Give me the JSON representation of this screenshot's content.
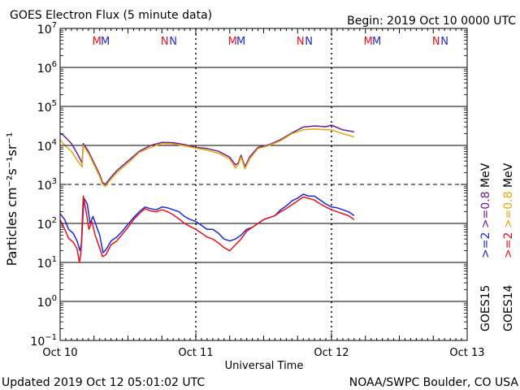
{
  "chart_data": {
    "type": "line",
    "title": "GOES Electron Flux (5 minute data)",
    "begin_label": "Begin: 2019 Oct 10 0000 UTC",
    "xlabel": "Universal Time",
    "ylabel": "Particles cm⁻²s⁻¹sr⁻¹",
    "yscale": "log",
    "ylim_exp": [
      -1,
      7
    ],
    "y_ticks": [
      {
        "base": "10",
        "exp": "7"
      },
      {
        "base": "10",
        "exp": "6"
      },
      {
        "base": "10",
        "exp": "5"
      },
      {
        "base": "10",
        "exp": "4"
      },
      {
        "base": "10",
        "exp": "3"
      },
      {
        "base": "10",
        "exp": "2"
      },
      {
        "base": "10",
        "exp": "1"
      },
      {
        "base": "10",
        "exp": "0"
      },
      {
        "base": "10",
        "exp": "−1"
      }
    ],
    "xlim_hours": [
      0,
      72
    ],
    "x_ticks": [
      {
        "label": "Oct 10",
        "hour": 0
      },
      {
        "label": "Oct 11",
        "hour": 24
      },
      {
        "label": "Oct 12",
        "hour": 48
      },
      {
        "label": "Oct 13",
        "hour": 72
      }
    ],
    "threshold_exp": 3,
    "local_time_markers": [
      {
        "label": "M",
        "hour": 6.5,
        "color": "#e8101a"
      },
      {
        "label": "M",
        "hour": 8.0,
        "color": "#1a2adb"
      },
      {
        "label": "N",
        "hour": 18.5,
        "color": "#e8101a"
      },
      {
        "label": "N",
        "hour": 20.0,
        "color": "#1a2adb"
      },
      {
        "label": "M",
        "hour": 30.5,
        "color": "#e8101a"
      },
      {
        "label": "M",
        "hour": 32.0,
        "color": "#1a2adb"
      },
      {
        "label": "N",
        "hour": 42.5,
        "color": "#e8101a"
      },
      {
        "label": "N",
        "hour": 44.0,
        "color": "#1a2adb"
      },
      {
        "label": "M",
        "hour": 54.5,
        "color": "#e8101a"
      },
      {
        "label": "M",
        "hour": 56.0,
        "color": "#1a2adb"
      },
      {
        "label": "N",
        "hour": 66.5,
        "color": "#e8101a"
      },
      {
        "label": "N",
        "hour": 68.0,
        "color": "#1a2adb"
      }
    ],
    "legend": {
      "goes15": "GOES15",
      "goes14": "GOES14",
      "items": [
        {
          "text": ">=2",
          "color": "#1a2adb"
        },
        {
          "text": ">=0.8",
          "color": "#6a1f9a"
        },
        {
          "text": "MeV",
          "color": "#000000"
        },
        {
          "text": ">=2",
          "color": "#e8101a"
        },
        {
          "text": ">=0.8",
          "color": "#e8a50c"
        },
        {
          "text": "MeV",
          "color": "#000000"
        }
      ]
    },
    "series": [
      {
        "name": "GOES15 >=0.8 MeV",
        "color": "#6a1f9a",
        "points": [
          [
            0,
            4.3
          ],
          [
            0.5,
            4.27
          ],
          [
            1,
            4.2
          ],
          [
            2,
            4.05
          ],
          [
            3,
            3.8
          ],
          [
            3.9,
            3.55
          ],
          [
            4.1,
            4.05
          ],
          [
            5,
            3.85
          ],
          [
            6,
            3.55
          ],
          [
            7,
            3.25
          ],
          [
            7.5,
            3.05
          ],
          [
            8.0,
            3.0
          ],
          [
            8.8,
            3.15
          ],
          [
            10,
            3.35
          ],
          [
            12,
            3.6
          ],
          [
            14,
            3.85
          ],
          [
            16,
            4.0
          ],
          [
            18,
            4.08
          ],
          [
            20,
            4.07
          ],
          [
            22,
            4.02
          ],
          [
            24,
            3.95
          ],
          [
            26,
            3.92
          ],
          [
            28,
            3.85
          ],
          [
            30,
            3.7
          ],
          [
            31,
            3.5
          ],
          [
            31.5,
            3.55
          ],
          [
            32,
            3.75
          ],
          [
            32.7,
            3.45
          ],
          [
            33.5,
            3.7
          ],
          [
            35,
            3.95
          ],
          [
            37,
            4.02
          ],
          [
            39,
            4.15
          ],
          [
            41,
            4.32
          ],
          [
            43,
            4.47
          ],
          [
            45,
            4.5
          ],
          [
            47,
            4.48
          ],
          [
            48,
            4.52
          ],
          [
            50,
            4.4
          ],
          [
            52,
            4.35
          ]
        ]
      },
      {
        "name": "GOES14 >=0.8 MeV",
        "color": "#e8a50c",
        "points": [
          [
            0,
            4.15
          ],
          [
            0.5,
            4.05
          ],
          [
            1,
            3.98
          ],
          [
            2,
            3.85
          ],
          [
            3,
            3.62
          ],
          [
            3.9,
            3.45
          ],
          [
            4.1,
            4.0
          ],
          [
            5,
            3.8
          ],
          [
            6,
            3.5
          ],
          [
            7,
            3.2
          ],
          [
            7.5,
            3.0
          ],
          [
            8.0,
            2.95
          ],
          [
            8.8,
            3.1
          ],
          [
            10,
            3.3
          ],
          [
            12,
            3.55
          ],
          [
            14,
            3.82
          ],
          [
            16,
            3.95
          ],
          [
            18,
            4.05
          ],
          [
            20,
            4.04
          ],
          [
            22,
            3.99
          ],
          [
            24,
            3.93
          ],
          [
            26,
            3.88
          ],
          [
            28,
            3.8
          ],
          [
            30,
            3.65
          ],
          [
            31,
            3.42
          ],
          [
            31.5,
            3.5
          ],
          [
            32,
            3.7
          ],
          [
            32.7,
            3.4
          ],
          [
            33.5,
            3.65
          ],
          [
            35,
            3.92
          ],
          [
            37,
            4.0
          ],
          [
            39,
            4.12
          ],
          [
            41,
            4.3
          ],
          [
            43,
            4.4
          ],
          [
            45,
            4.42
          ],
          [
            47,
            4.4
          ],
          [
            48,
            4.4
          ],
          [
            50,
            4.3
          ],
          [
            52,
            4.22
          ]
        ]
      },
      {
        "name": "GOES15 >=2 MeV",
        "color": "#1a2adb",
        "points": [
          [
            0,
            2.25
          ],
          [
            0.8,
            2.1
          ],
          [
            1.5,
            1.85
          ],
          [
            2.3,
            1.75
          ],
          [
            3,
            1.55
          ],
          [
            3.5,
            1.3
          ],
          [
            3.8,
            1.5
          ],
          [
            4.2,
            2.65
          ],
          [
            4.8,
            2.5
          ],
          [
            5.3,
            2.0
          ],
          [
            5.8,
            2.18
          ],
          [
            6.5,
            1.9
          ],
          [
            7,
            1.7
          ],
          [
            7.6,
            1.25
          ],
          [
            8.2,
            1.35
          ],
          [
            9,
            1.55
          ],
          [
            10,
            1.65
          ],
          [
            11,
            1.8
          ],
          [
            12,
            1.98
          ],
          [
            13,
            2.15
          ],
          [
            14,
            2.3
          ],
          [
            15,
            2.42
          ],
          [
            16,
            2.38
          ],
          [
            17,
            2.35
          ],
          [
            18,
            2.42
          ],
          [
            19,
            2.4
          ],
          [
            20,
            2.35
          ],
          [
            21,
            2.3
          ],
          [
            22,
            2.18
          ],
          [
            23,
            2.1
          ],
          [
            24,
            2.05
          ],
          [
            25,
            1.95
          ],
          [
            26,
            1.85
          ],
          [
            27,
            1.85
          ],
          [
            28,
            1.75
          ],
          [
            29,
            1.6
          ],
          [
            30,
            1.55
          ],
          [
            31,
            1.6
          ],
          [
            32,
            1.7
          ],
          [
            33,
            1.85
          ],
          [
            34,
            1.9
          ],
          [
            35,
            2.0
          ],
          [
            36,
            2.1
          ],
          [
            37,
            2.15
          ],
          [
            38,
            2.2
          ],
          [
            39,
            2.35
          ],
          [
            40,
            2.45
          ],
          [
            41,
            2.58
          ],
          [
            42,
            2.65
          ],
          [
            43,
            2.75
          ],
          [
            44,
            2.7
          ],
          [
            45,
            2.7
          ],
          [
            46,
            2.6
          ],
          [
            47,
            2.5
          ],
          [
            48,
            2.42
          ],
          [
            49,
            2.4
          ],
          [
            50,
            2.35
          ],
          [
            51,
            2.3
          ],
          [
            52,
            2.2
          ]
        ]
      },
      {
        "name": "GOES14 >=2 MeV",
        "color": "#e8101a",
        "points": [
          [
            0,
            2.1
          ],
          [
            0.8,
            1.85
          ],
          [
            1.5,
            1.62
          ],
          [
            2.3,
            1.52
          ],
          [
            3,
            1.35
          ],
          [
            3.4,
            1.0
          ],
          [
            3.7,
            1.25
          ],
          [
            4.1,
            2.7
          ],
          [
            4.6,
            2.3
          ],
          [
            5.1,
            1.85
          ],
          [
            5.6,
            2.05
          ],
          [
            6.2,
            1.7
          ],
          [
            6.8,
            1.45
          ],
          [
            7.5,
            1.15
          ],
          [
            8.1,
            1.2
          ],
          [
            9,
            1.45
          ],
          [
            10,
            1.55
          ],
          [
            11,
            1.72
          ],
          [
            12,
            1.9
          ],
          [
            13,
            2.1
          ],
          [
            14,
            2.25
          ],
          [
            15,
            2.38
          ],
          [
            16,
            2.32
          ],
          [
            17,
            2.3
          ],
          [
            18,
            2.35
          ],
          [
            19,
            2.3
          ],
          [
            20,
            2.22
          ],
          [
            21,
            2.12
          ],
          [
            22,
            2.0
          ],
          [
            23,
            1.92
          ],
          [
            24,
            1.85
          ],
          [
            25,
            1.75
          ],
          [
            26,
            1.65
          ],
          [
            27,
            1.6
          ],
          [
            28,
            1.5
          ],
          [
            29,
            1.38
          ],
          [
            30,
            1.3
          ],
          [
            31,
            1.45
          ],
          [
            32,
            1.6
          ],
          [
            33,
            1.8
          ],
          [
            34,
            1.9
          ],
          [
            35,
            2.0
          ],
          [
            36,
            2.1
          ],
          [
            37,
            2.15
          ],
          [
            38,
            2.2
          ],
          [
            39,
            2.3
          ],
          [
            40,
            2.38
          ],
          [
            41,
            2.48
          ],
          [
            42,
            2.58
          ],
          [
            43,
            2.68
          ],
          [
            44,
            2.64
          ],
          [
            45,
            2.6
          ],
          [
            46,
            2.5
          ],
          [
            47,
            2.42
          ],
          [
            48,
            2.35
          ],
          [
            49,
            2.3
          ],
          [
            50,
            2.25
          ],
          [
            51,
            2.2
          ],
          [
            52,
            2.1
          ]
        ]
      }
    ]
  },
  "footer": {
    "updated": "Updated 2019 Oct 12 05:01:02 UTC",
    "source": "NOAA/SWPC Boulder, CO USA"
  }
}
